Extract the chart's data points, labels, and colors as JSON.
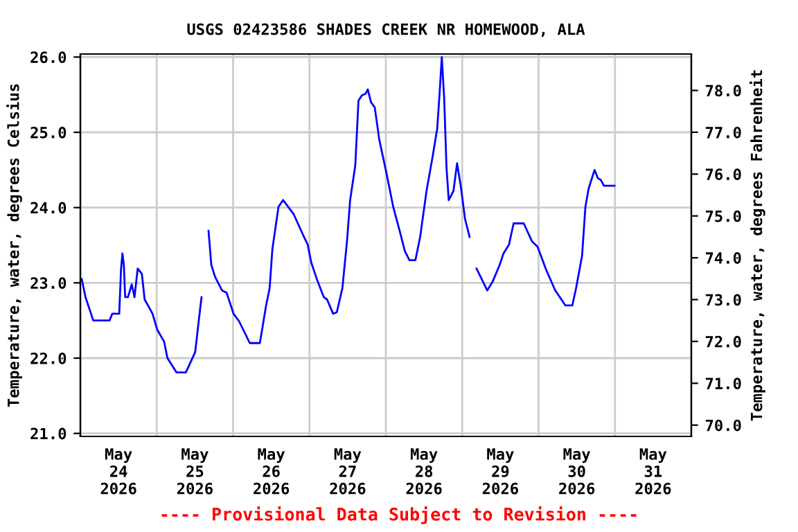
{
  "chart_data": {
    "type": "line",
    "title": "USGS 02423586 SHADES CREEK NR HOMEWOOD, ALA",
    "ylabel": "Temperature, water, degrees Celsius",
    "y2label": "Temperature, water, degrees Fahrenheit",
    "annotations": [
      "---- Provisional Data Subject to Revision ----"
    ],
    "x": [
      "2026-05-24T00:26",
      "2026-05-24T01:37",
      "2026-05-24T04:04",
      "2026-05-24T09:10",
      "2026-05-24T10:02",
      "2026-05-24T12:13",
      "2026-05-24T12:47",
      "2026-05-24T13:13",
      "2026-05-24T13:40",
      "2026-05-24T14:05",
      "2026-05-24T14:58",
      "2026-05-24T16:09",
      "2026-05-24T17:01",
      "2026-05-24T18:01",
      "2026-05-24T19:20",
      "2026-05-24T20:12",
      "2026-05-24T22:41",
      "2026-05-25T00:08",
      "2026-05-25T02:19",
      "2026-05-25T03:22",
      "2026-05-25T06:14",
      "2026-05-25T09:10",
      "2026-05-25T12:05",
      "2026-05-25T13:13",
      "2026-05-25T14:05",
      "2026-05-25T15:10",
      "2026-05-25T16:17",
      "2026-05-25T17:09",
      "2026-05-25T18:20",
      "2026-05-25T20:31",
      "2026-05-25T21:57",
      "2026-05-26T00:08",
      "2026-05-26T01:53",
      "2026-05-26T05:14",
      "2026-05-26T08:25",
      "2026-05-26T10:20",
      "2026-05-26T11:29",
      "2026-05-26T12:21",
      "2026-05-26T14:16",
      "2026-05-26T15:43",
      "2026-05-26T17:19",
      "2026-05-26T19:04",
      "2026-05-26T21:57",
      "2026-05-26T23:26",
      "2026-05-27T00:34",
      "2026-05-27T02:19",
      "2026-05-27T04:30",
      "2026-05-27T05:32",
      "2026-05-27T07:25",
      "2026-05-27T08:36",
      "2026-05-27T10:21",
      "2026-05-27T11:47",
      "2026-05-27T12:47",
      "2026-05-27T14:24",
      "2026-05-27T15:24",
      "2026-05-27T16:27",
      "2026-05-27T17:35",
      "2026-05-27T18:20",
      "2026-05-27T19:20",
      "2026-05-27T20:31",
      "2026-05-27T21:57",
      "2026-05-28T00:08",
      "2026-05-28T02:19",
      "2026-05-28T04:29",
      "2026-05-28T05:59",
      "2026-05-28T07:25",
      "2026-05-28T09:17",
      "2026-05-28T10:47",
      "2026-05-28T12:47",
      "2026-05-28T14:43",
      "2026-05-28T16:09",
      "2026-05-28T16:53",
      "2026-05-28T17:35",
      "2026-05-28T18:20",
      "2026-05-28T19:04",
      "2026-05-28T19:46",
      "2026-05-28T21:15",
      "2026-05-28T22:23",
      "2026-05-28T23:34",
      "2026-05-29T00:53",
      "2026-05-29T02:19",
      "2026-05-29T03:20",
      "2026-05-29T04:30",
      "2026-05-29T07:51",
      "2026-05-29T09:36",
      "2026-05-29T11:47",
      "2026-05-29T12:58",
      "2026-05-29T14:43",
      "2026-05-29T16:09",
      "2026-05-29T19:20",
      "2026-05-29T21:57",
      "2026-05-29T23:41",
      "2026-05-30T02:19",
      "2026-05-30T05:14",
      "2026-05-30T06:41",
      "2026-05-30T08:25",
      "2026-05-30T10:36",
      "2026-05-30T11:47",
      "2026-05-30T13:40",
      "2026-05-30T14:43",
      "2026-05-30T15:43",
      "2026-05-30T17:35",
      "2026-05-30T18:38",
      "2026-05-30T19:31",
      "2026-05-30T20:31",
      "2026-05-30T23:52"
    ],
    "series": [
      {
        "color": "#0000ff",
        "values": [
          23.05,
          22.81,
          22.5,
          22.5,
          22.59,
          22.59,
          23.18,
          23.39,
          23.24,
          22.81,
          22.81,
          22.98,
          22.81,
          23.19,
          23.12,
          22.78,
          22.59,
          22.38,
          22.22,
          22.0,
          21.81,
          21.81,
          22.08,
          22.5,
          22.81,
          null,
          23.69,
          23.24,
          23.08,
          22.9,
          22.87,
          22.59,
          22.49,
          22.2,
          22.2,
          22.69,
          22.93,
          23.45,
          24.01,
          24.1,
          24.01,
          23.91,
          23.64,
          23.51,
          23.27,
          23.05,
          22.81,
          22.78,
          22.59,
          22.61,
          22.93,
          23.55,
          24.1,
          24.56,
          25.42,
          25.49,
          25.51,
          25.57,
          25.4,
          25.33,
          24.9,
          24.47,
          24.01,
          23.67,
          23.42,
          23.3,
          23.3,
          23.61,
          24.22,
          24.68,
          25.05,
          25.51,
          26.0,
          25.45,
          24.53,
          24.1,
          24.22,
          24.59,
          24.28,
          23.85,
          23.61,
          null,
          23.19,
          22.9,
          23.02,
          23.24,
          23.39,
          23.51,
          23.79,
          23.79,
          23.55,
          23.48,
          23.18,
          22.9,
          22.81,
          22.7,
          22.7,
          22.93,
          23.36,
          24.01,
          24.25,
          24.5,
          24.39,
          24.37,
          24.29,
          24.29
        ]
      }
    ],
    "xlim": [
      "2026-05-24T00:00",
      "2026-06-01T00:00"
    ],
    "xticks": [
      {
        "value": "2026-05-24T00:00",
        "label": null
      },
      {
        "value": "2026-05-24T12:00",
        "label": "May\n24\n2026"
      },
      {
        "value": "2026-05-25T00:00",
        "label": null
      },
      {
        "value": "2026-05-25T12:00",
        "label": "May\n25\n2026"
      },
      {
        "value": "2026-05-26T00:00",
        "label": null
      },
      {
        "value": "2026-05-26T12:00",
        "label": "May\n26\n2026"
      },
      {
        "value": "2026-05-27T00:00",
        "label": null
      },
      {
        "value": "2026-05-27T12:00",
        "label": "May\n27\n2026"
      },
      {
        "value": "2026-05-28T00:00",
        "label": null
      },
      {
        "value": "2026-05-28T12:00",
        "label": "May\n28\n2026"
      },
      {
        "value": "2026-05-29T00:00",
        "label": null
      },
      {
        "value": "2026-05-29T12:00",
        "label": "May\n29\n2026"
      },
      {
        "value": "2026-05-30T00:00",
        "label": null
      },
      {
        "value": "2026-05-30T12:00",
        "label": "May\n30\n2026"
      },
      {
        "value": "2026-05-31T00:00",
        "label": null
      },
      {
        "value": "2026-05-31T12:00",
        "label": "May\n31\n2026"
      },
      {
        "value": "2026-06-01T00:00",
        "label": null
      }
    ],
    "ylim": [
      20.96,
      26.04
    ],
    "yticks": [
      {
        "value": 21,
        "label": "21.0"
      },
      {
        "value": 22,
        "label": "22.0"
      },
      {
        "value": 23,
        "label": "23.0"
      },
      {
        "value": 24,
        "label": "24.0"
      },
      {
        "value": 25,
        "label": "25.0"
      },
      {
        "value": 26,
        "label": "26.0"
      }
    ],
    "y2lim": [
      69.73,
      78.87
    ],
    "y2ticks": [
      {
        "value": 70,
        "label": "70.0"
      },
      {
        "value": 71,
        "label": "71.0"
      },
      {
        "value": 72,
        "label": "72.0"
      },
      {
        "value": 73,
        "label": "73.0"
      },
      {
        "value": 74,
        "label": "74.0"
      },
      {
        "value": 75,
        "label": "75.0"
      },
      {
        "value": 76,
        "label": "76.0"
      },
      {
        "value": 77,
        "label": "77.0"
      },
      {
        "value": 78,
        "label": "78.0"
      }
    ],
    "grid": true,
    "legend": false,
    "marker": "none",
    "line_style": "solid"
  }
}
